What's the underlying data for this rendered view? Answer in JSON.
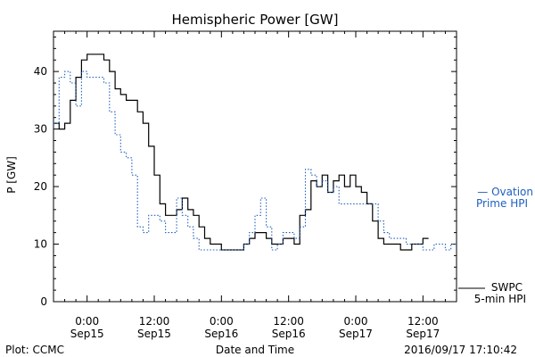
{
  "chart_data": {
    "type": "line",
    "title": "Hemispheric Power [GW]",
    "ylabel": "P [GW]",
    "xlabel": "Date and Time",
    "ylim": [
      0,
      47
    ],
    "xlim": [
      "2016-09-14 18:00",
      "2016-09-17 18:00"
    ],
    "grid": false,
    "y_ticks": [
      "0",
      "10",
      "20",
      "30",
      "40"
    ],
    "x_ticks": [
      {
        "time": "0:00",
        "date": "Sep15"
      },
      {
        "time": "12:00",
        "date": "Sep15"
      },
      {
        "time": "0:00",
        "date": "Sep16"
      },
      {
        "time": "12:00",
        "date": "Sep16"
      },
      {
        "time": "0:00",
        "date": "Sep17"
      },
      {
        "time": "12:00",
        "date": "Sep17"
      }
    ],
    "series": [
      {
        "name": "SWPC 5-min HPI",
        "style": "solid",
        "color": "#000000",
        "x": [
          "2016-09-14 18:00",
          "2016-09-14 19:00",
          "2016-09-14 20:00",
          "2016-09-14 21:00",
          "2016-09-14 22:00",
          "2016-09-14 23:00",
          "2016-09-15 00:00",
          "2016-09-15 01:00",
          "2016-09-15 02:00",
          "2016-09-15 03:00",
          "2016-09-15 04:00",
          "2016-09-15 05:00",
          "2016-09-15 06:00",
          "2016-09-15 07:00",
          "2016-09-15 08:00",
          "2016-09-15 09:00",
          "2016-09-15 10:00",
          "2016-09-15 11:00",
          "2016-09-15 12:00",
          "2016-09-15 13:00",
          "2016-09-15 14:00",
          "2016-09-15 15:00",
          "2016-09-15 16:00",
          "2016-09-15 17:00",
          "2016-09-15 18:00",
          "2016-09-15 19:00",
          "2016-09-15 20:00",
          "2016-09-15 21:00",
          "2016-09-15 22:00",
          "2016-09-15 23:00",
          "2016-09-16 00:00",
          "2016-09-16 01:00",
          "2016-09-16 02:00",
          "2016-09-16 03:00",
          "2016-09-16 04:00",
          "2016-09-16 05:00",
          "2016-09-16 06:00",
          "2016-09-16 07:00",
          "2016-09-16 08:00",
          "2016-09-16 09:00",
          "2016-09-16 10:00",
          "2016-09-16 11:00",
          "2016-09-16 12:00",
          "2016-09-16 13:00",
          "2016-09-16 14:00",
          "2016-09-16 15:00",
          "2016-09-16 16:00",
          "2016-09-16 17:00",
          "2016-09-16 18:00",
          "2016-09-16 19:00",
          "2016-09-16 20:00",
          "2016-09-16 21:00",
          "2016-09-16 22:00",
          "2016-09-16 23:00",
          "2016-09-17 00:00",
          "2016-09-17 01:00",
          "2016-09-17 02:00",
          "2016-09-17 03:00",
          "2016-09-17 04:00",
          "2016-09-17 05:00",
          "2016-09-17 06:00",
          "2016-09-17 07:00",
          "2016-09-17 08:00",
          "2016-09-17 09:00",
          "2016-09-17 10:00",
          "2016-09-17 11:00",
          "2016-09-17 12:00",
          "2016-09-17 13:00"
        ],
        "values": [
          31,
          30,
          31,
          35,
          39,
          42,
          43,
          43,
          43,
          42,
          40,
          37,
          36,
          35,
          35,
          33,
          31,
          27,
          22,
          17,
          15,
          15,
          16,
          18,
          16,
          15,
          13,
          11,
          10,
          10,
          9,
          9,
          9,
          9,
          10,
          11,
          12,
          12,
          11,
          10,
          10,
          11,
          11,
          10,
          15,
          16,
          21,
          20,
          22,
          19,
          21,
          22,
          20,
          22,
          20,
          19,
          17,
          14,
          11,
          10,
          10,
          10,
          9,
          9,
          10,
          10,
          11,
          11
        ]
      },
      {
        "name": "Ovation Prime HPI",
        "style": "dotted",
        "color": "#1f5fbf",
        "x": [
          "2016-09-14 18:00",
          "2016-09-14 19:00",
          "2016-09-14 20:00",
          "2016-09-14 21:00",
          "2016-09-14 22:00",
          "2016-09-14 23:00",
          "2016-09-15 00:00",
          "2016-09-15 01:00",
          "2016-09-15 02:00",
          "2016-09-15 03:00",
          "2016-09-15 04:00",
          "2016-09-15 05:00",
          "2016-09-15 06:00",
          "2016-09-15 07:00",
          "2016-09-15 08:00",
          "2016-09-15 09:00",
          "2016-09-15 10:00",
          "2016-09-15 11:00",
          "2016-09-15 12:00",
          "2016-09-15 13:00",
          "2016-09-15 14:00",
          "2016-09-15 15:00",
          "2016-09-15 16:00",
          "2016-09-15 17:00",
          "2016-09-15 18:00",
          "2016-09-15 19:00",
          "2016-09-15 20:00",
          "2016-09-15 21:00",
          "2016-09-15 22:00",
          "2016-09-15 23:00",
          "2016-09-16 00:00",
          "2016-09-16 01:00",
          "2016-09-16 02:00",
          "2016-09-16 03:00",
          "2016-09-16 04:00",
          "2016-09-16 05:00",
          "2016-09-16 06:00",
          "2016-09-16 07:00",
          "2016-09-16 08:00",
          "2016-09-16 09:00",
          "2016-09-16 10:00",
          "2016-09-16 11:00",
          "2016-09-16 12:00",
          "2016-09-16 13:00",
          "2016-09-16 14:00",
          "2016-09-16 15:00",
          "2016-09-16 16:00",
          "2016-09-16 17:00",
          "2016-09-16 18:00",
          "2016-09-16 19:00",
          "2016-09-16 20:00",
          "2016-09-16 21:00",
          "2016-09-16 22:00",
          "2016-09-16 23:00",
          "2016-09-17 00:00",
          "2016-09-17 01:00",
          "2016-09-17 02:00",
          "2016-09-17 03:00",
          "2016-09-17 04:00",
          "2016-09-17 05:00",
          "2016-09-17 06:00",
          "2016-09-17 07:00",
          "2016-09-17 08:00",
          "2016-09-17 09:00",
          "2016-09-17 10:00",
          "2016-09-17 11:00",
          "2016-09-17 12:00",
          "2016-09-17 13:00",
          "2016-09-17 14:00",
          "2016-09-17 15:00",
          "2016-09-17 16:00",
          "2016-09-17 17:00",
          "2016-09-17 18:00"
        ],
        "values": [
          31,
          39,
          40,
          38,
          34,
          40,
          39,
          39,
          39,
          38,
          33,
          29,
          26,
          25,
          22,
          13,
          12,
          15,
          15,
          14,
          12,
          12,
          18,
          15,
          13,
          11,
          9,
          9,
          9,
          9,
          9,
          9,
          9,
          9,
          10,
          12,
          15,
          18,
          13,
          9,
          10,
          12,
          12,
          11,
          13,
          23,
          22,
          20,
          21,
          19,
          20,
          17,
          17,
          17,
          17,
          17,
          17,
          17,
          14,
          12,
          11,
          11,
          11,
          10,
          10,
          10,
          9,
          9,
          10,
          10,
          9,
          10,
          10
        ]
      }
    ],
    "legend": [
      {
        "line1": "— Ovation",
        "line2": "Prime HPI",
        "color": "#1f5fbf"
      },
      {
        "line1": "SWPC",
        "line2": "5-min HPI",
        "color": "#000000"
      }
    ]
  },
  "footer": {
    "left": "Plot: CCMC",
    "center": "Date and Time",
    "right": "2016/09/17 17:10:42"
  }
}
